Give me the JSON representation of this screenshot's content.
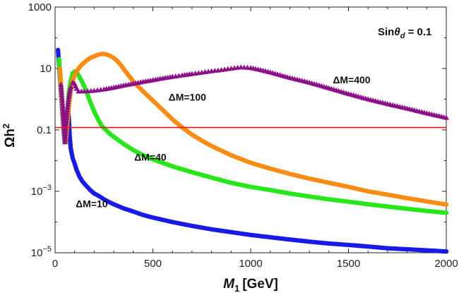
{
  "chart_data": {
    "type": "scatter",
    "title": "",
    "xlabel": "M",
    "xlabel_sub": "1",
    "xlabel_unit": "[GeV]",
    "ylabel": "Ωh",
    "ylabel_sup": "2",
    "xlim": [
      0,
      2000
    ],
    "ylim_log10": [
      -5,
      3
    ],
    "yscale": "log",
    "x_ticks": [
      0,
      500,
      1000,
      1500,
      2000
    ],
    "x_tick_labels": [
      "0",
      "500",
      "1000",
      "1500",
      "2000"
    ],
    "y_ticks": [
      1000,
      10,
      0.1,
      0.001,
      1e-05
    ],
    "y_tick_labels": [
      {
        "base": "1000",
        "exp": ""
      },
      {
        "base": "10",
        "exp": ""
      },
      {
        "base": "0.1",
        "exp": ""
      },
      {
        "base": "10",
        "exp": "−3"
      },
      {
        "base": "10",
        "exp": "−5"
      }
    ],
    "annotation": {
      "prefix": "Sin",
      "theta": "θ",
      "sub": "d",
      "rest": " = 0.1"
    },
    "reference_line": {
      "y": 0.12,
      "color": "#e0161a"
    },
    "series": [
      {
        "name": "ΔM=10",
        "color": "#1a1ae6",
        "x": [
          15,
          25,
          35,
          45,
          50,
          55,
          60,
          65,
          70,
          75,
          80,
          90,
          100,
          110,
          125,
          140,
          160,
          180,
          200,
          225,
          250,
          275,
          300,
          350,
          400,
          450,
          500,
          600,
          700,
          800,
          900,
          1000,
          1100,
          1200,
          1300,
          1400,
          1500,
          1600,
          1700,
          1800,
          1900,
          2000
        ],
        "y": [
          40,
          5,
          0.6,
          0.08,
          0.04,
          0.05,
          0.25,
          0.5,
          0.25,
          0.06,
          0.025,
          0.012,
          0.008,
          0.005,
          0.003,
          0.0021,
          0.0015,
          0.0011,
          0.00085,
          0.0007,
          0.00055,
          0.00045,
          0.00038,
          0.00028,
          0.00022,
          0.00017,
          0.00014,
          0.0001,
          7.5e-05,
          5.8e-05,
          4.7e-05,
          3.8e-05,
          3.2e-05,
          2.7e-05,
          2.3e-05,
          2e-05,
          1.8e-05,
          1.6e-05,
          1.4e-05,
          1.3e-05,
          1.2e-05,
          1.1e-05
        ]
      },
      {
        "name": "ΔM=40",
        "color": "#27e619",
        "x": [
          20,
          30,
          40,
          50,
          60,
          70,
          80,
          90,
          100,
          110,
          120,
          140,
          160,
          180,
          200,
          220,
          240,
          260,
          280,
          300,
          350,
          400,
          450,
          500,
          600,
          700,
          800,
          900,
          1000,
          1100,
          1200,
          1300,
          1400,
          1500,
          1600,
          1700,
          1800,
          1900,
          2000
        ],
        "y": [
          20,
          2,
          0.3,
          0.04,
          0.25,
          1.5,
          4,
          7,
          8,
          7.5,
          6,
          3.5,
          1.8,
          0.8,
          0.4,
          0.22,
          0.13,
          0.1,
          0.075,
          0.06,
          0.035,
          0.022,
          0.015,
          0.011,
          0.0065,
          0.0042,
          0.0028,
          0.0019,
          0.0014,
          0.0011,
          0.00085,
          0.00068,
          0.00055,
          0.00046,
          0.00038,
          0.00032,
          0.00027,
          0.00023,
          0.0002
        ]
      },
      {
        "name": "ΔM=100",
        "color": "#fa8c14",
        "x": [
          25,
          35,
          45,
          55,
          70,
          80,
          90,
          100,
          120,
          140,
          160,
          180,
          200,
          220,
          240,
          260,
          280,
          300,
          320,
          340,
          360,
          380,
          400,
          450,
          500,
          550,
          600,
          650,
          700,
          750,
          800,
          900,
          1000,
          1100,
          1200,
          1300,
          1400,
          1500,
          1600,
          1700,
          1800,
          1900,
          2000
        ],
        "y": [
          10,
          1,
          0.12,
          0.04,
          0.6,
          2,
          4,
          6,
          10,
          14,
          18,
          22,
          25,
          28,
          30,
          29,
          26,
          22,
          17,
          12,
          8,
          5.5,
          3.8,
          1.8,
          0.9,
          0.45,
          0.22,
          0.12,
          0.07,
          0.045,
          0.03,
          0.015,
          0.0085,
          0.0055,
          0.0037,
          0.0026,
          0.0019,
          0.0014,
          0.001,
          0.00078,
          0.0006,
          0.00047,
          0.00037
        ]
      },
      {
        "name": "ΔM=400",
        "color": "#8b0f88",
        "x": [
          30,
          40,
          50,
          60,
          70,
          80,
          90,
          100,
          110,
          120,
          150,
          200,
          250,
          300,
          350,
          400,
          450,
          500,
          550,
          600,
          650,
          700,
          750,
          800,
          850,
          900,
          950,
          1000,
          1050,
          1100,
          1200,
          1300,
          1400,
          1500,
          1600,
          1700,
          1800,
          1900,
          2000
        ],
        "y": [
          3,
          0.5,
          0.04,
          0.3,
          1.2,
          2.5,
          3.5,
          3.2,
          2.2,
          1.8,
          1.8,
          1.9,
          2.1,
          2.4,
          2.8,
          3.2,
          3.7,
          4.2,
          4.8,
          5.4,
          6,
          6.7,
          7.4,
          8.2,
          9,
          10,
          11,
          10.5,
          9,
          7.5,
          5,
          3.5,
          2.3,
          1.5,
          1,
          0.7,
          0.5,
          0.35,
          0.25
        ]
      }
    ],
    "series_labels": [
      "ΔM=10",
      "ΔM=40",
      "ΔM=100",
      "ΔM=400"
    ],
    "label_positions": [
      {
        "x": 105,
        "y": 0.0003
      },
      {
        "x": 405,
        "y": 0.01
      },
      {
        "x": 580,
        "y": 0.9
      },
      {
        "x": 1420,
        "y": 3.3
      }
    ]
  }
}
